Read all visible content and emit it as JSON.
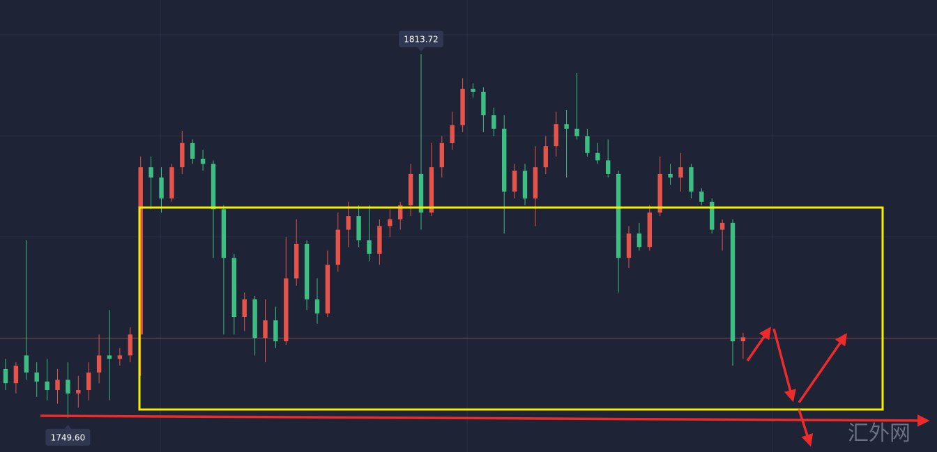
{
  "chart_data": {
    "type": "candlestick",
    "up_color": "#e5534b",
    "down_color": "#3dbf84",
    "ylim": [
      1743.57,
      1823.3
    ],
    "open": [
      1758.2,
      1755.7,
      1760.6,
      1757.6,
      1756.0,
      1754.5,
      1756.3,
      1753.9,
      1754.5,
      1757.6,
      1760.6,
      1760.0,
      1760.6,
      1764.3,
      1793.8,
      1792.0,
      1788.3,
      1793.8,
      1798.1,
      1795.3,
      1794.4,
      1786.4,
      1777.8,
      1767.4,
      1770.5,
      1763.7,
      1766.8,
      1763.1,
      1774.2,
      1780.3,
      1770.5,
      1768.0,
      1776.6,
      1782.8,
      1785.2,
      1780.9,
      1778.5,
      1783.4,
      1784.6,
      1787.1,
      1792.6,
      1785.8,
      1793.8,
      1798.1,
      1801.2,
      1807.6,
      1807.1,
      1803.0,
      1800.6,
      1789.5,
      1793.2,
      1788.3,
      1793.8,
      1797.5,
      1801.4,
      1800.6,
      1799.3,
      1796.3,
      1795.0,
      1792.6,
      1777.8,
      1782.1,
      1779.7,
      1785.8,
      1792.6,
      1792.0,
      1793.8,
      1789.5,
      1787.7,
      1782.8,
      1784.0,
      1763.1
    ],
    "high": [
      1760.0,
      1759.4,
      1780.9,
      1759.4,
      1760.0,
      1758.2,
      1759.4,
      1757.0,
      1759.4,
      1764.3,
      1768.6,
      1761.9,
      1765.6,
      1795.7,
      1795.7,
      1793.8,
      1794.4,
      1800.2,
      1798.7,
      1796.9,
      1795.0,
      1787.1,
      1778.5,
      1771.7,
      1771.1,
      1770.5,
      1769.2,
      1781.5,
      1784.6,
      1780.9,
      1774.2,
      1779.1,
      1785.8,
      1787.7,
      1787.1,
      1787.1,
      1784.6,
      1786.4,
      1787.7,
      1794.4,
      1813.72,
      1798.1,
      1799.3,
      1803.6,
      1809.5,
      1808.6,
      1807.9,
      1804.3,
      1803.0,
      1794.4,
      1794.4,
      1797.5,
      1799.3,
      1803.6,
      1803.9,
      1810.4,
      1800.6,
      1798.1,
      1798.7,
      1793.2,
      1783.4,
      1784.0,
      1787.1,
      1795.7,
      1794.4,
      1796.3,
      1794.4,
      1790.1,
      1788.3,
      1784.6,
      1784.6,
      1764.6
    ],
    "low": [
      1754.5,
      1753.9,
      1756.3,
      1753.3,
      1752.7,
      1752.1,
      1749.6,
      1751.4,
      1752.7,
      1755.7,
      1752.7,
      1758.8,
      1759.4,
      1757.0,
      1786.4,
      1785.8,
      1787.7,
      1792.6,
      1794.4,
      1793.2,
      1777.8,
      1764.3,
      1764.3,
      1764.9,
      1760.6,
      1759.4,
      1761.9,
      1762.5,
      1772.9,
      1768.6,
      1766.2,
      1767.4,
      1775.4,
      1779.7,
      1779.7,
      1777.2,
      1776.6,
      1781.5,
      1782.8,
      1785.2,
      1782.8,
      1785.2,
      1792.0,
      1796.9,
      1800.0,
      1806.1,
      1800.0,
      1799.3,
      1782.1,
      1788.3,
      1787.1,
      1783.4,
      1792.6,
      1795.7,
      1792.0,
      1798.7,
      1795.7,
      1794.4,
      1792.0,
      1771.7,
      1776.0,
      1779.1,
      1779.1,
      1785.2,
      1790.7,
      1789.5,
      1788.3,
      1787.1,
      1782.1,
      1779.1,
      1758.8,
      1760.0
    ],
    "close": [
      1755.7,
      1758.8,
      1757.6,
      1756.0,
      1754.5,
      1756.3,
      1753.9,
      1754.5,
      1757.6,
      1760.6,
      1760.0,
      1760.6,
      1764.3,
      1793.8,
      1792.0,
      1788.3,
      1793.8,
      1798.1,
      1795.3,
      1794.4,
      1786.4,
      1777.8,
      1767.4,
      1770.5,
      1763.7,
      1766.8,
      1763.1,
      1774.2,
      1780.3,
      1770.5,
      1768.0,
      1776.6,
      1782.8,
      1785.2,
      1780.9,
      1778.5,
      1783.4,
      1784.6,
      1787.1,
      1792.6,
      1785.8,
      1793.8,
      1798.1,
      1801.2,
      1807.6,
      1807.1,
      1803.0,
      1800.6,
      1789.5,
      1793.2,
      1788.3,
      1793.8,
      1797.5,
      1801.4,
      1800.6,
      1799.3,
      1796.3,
      1795.0,
      1792.6,
      1777.8,
      1782.1,
      1779.7,
      1785.8,
      1792.6,
      1792.0,
      1793.8,
      1789.5,
      1787.7,
      1782.8,
      1784.0,
      1763.1,
      1763.8
    ],
    "annotations": [
      {
        "label": "1813.72",
        "value": 1813.72,
        "side": "high"
      },
      {
        "label": "1749.60",
        "value": 1749.6,
        "side": "low"
      }
    ],
    "watermark": "汇外网"
  }
}
